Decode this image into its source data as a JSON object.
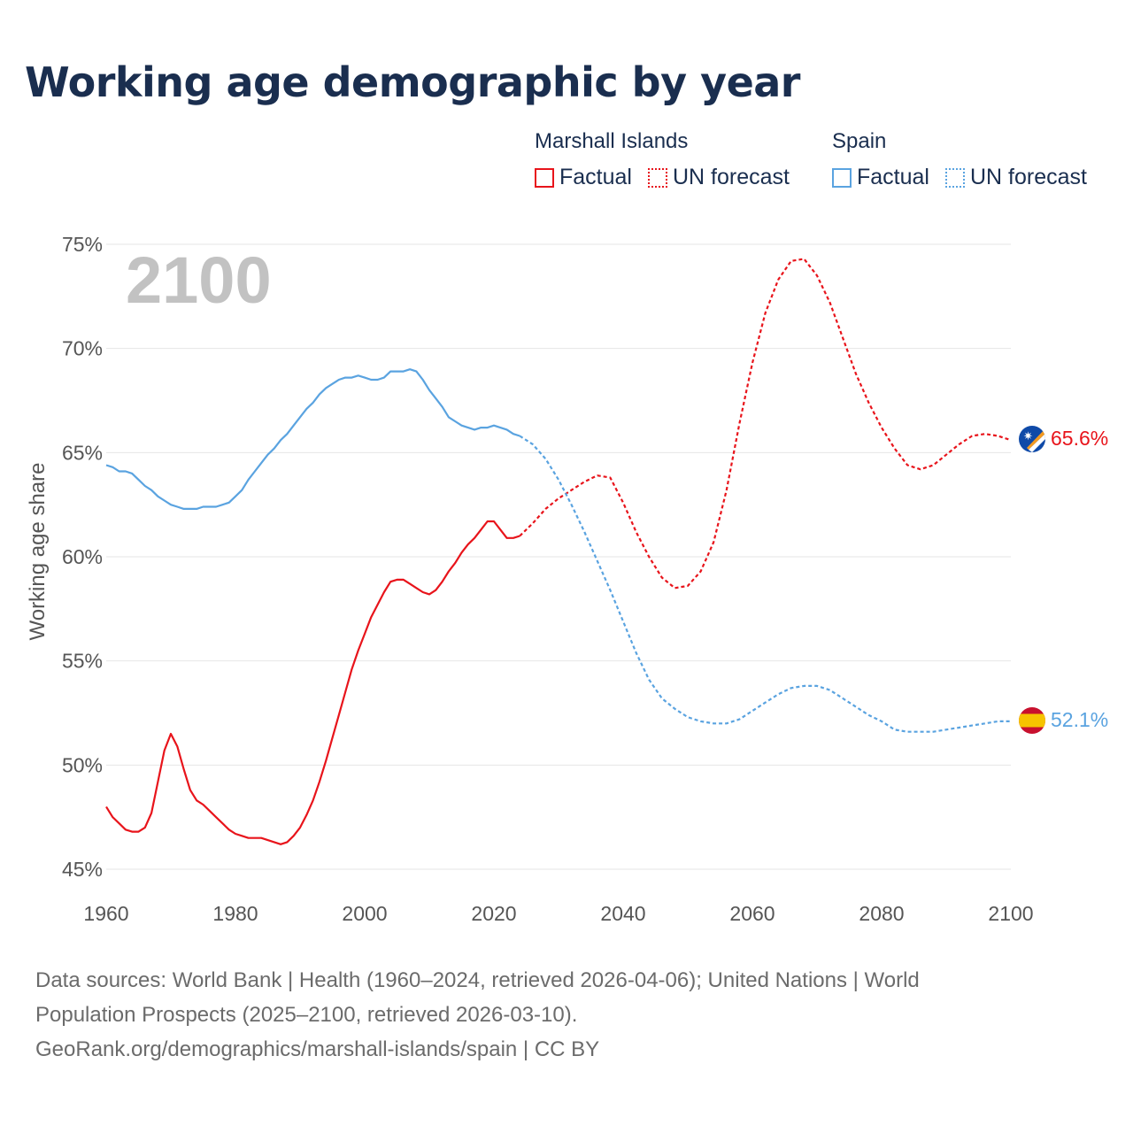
{
  "title": "Working age demographic by year",
  "legend": {
    "group1": "Marshall Islands",
    "group2": "Spain",
    "factual": "Factual",
    "forecast": "UN forecast"
  },
  "year_watermark": "2100",
  "end_labels": {
    "marshall": "65.6%",
    "spain": "52.1%"
  },
  "footer": {
    "line1": "Data sources: World Bank | Health (1960–2024, retrieved 2026-04-06); United Nations | World",
    "line2": "Population Prospects (2025–2100, retrieved 2026-03-10).",
    "line3": "GeoRank.org/demographics/marshall-islands/spain | CC BY"
  },
  "colors": {
    "marshall": "#e8141b",
    "spain": "#5aa3e0",
    "title": "#1a2e4f",
    "grid": "#e6e6e6",
    "axis_text": "#555555"
  },
  "chart_data": {
    "type": "line",
    "ylabel": "Working age share",
    "xlabel": "",
    "xlim": [
      1960,
      2100
    ],
    "ylim": [
      45,
      75
    ],
    "x_ticks": [
      1960,
      1980,
      2000,
      2020,
      2040,
      2060,
      2080,
      2100
    ],
    "y_ticks": [
      45,
      50,
      55,
      60,
      65,
      70,
      75
    ],
    "y_tick_labels": [
      "45%",
      "50%",
      "55%",
      "60%",
      "65%",
      "70%",
      "75%"
    ],
    "series": [
      {
        "name": "Marshall Islands",
        "factual": {
          "x": [
            1960,
            1961,
            1962,
            1963,
            1964,
            1965,
            1966,
            1967,
            1968,
            1969,
            1970,
            1971,
            1972,
            1973,
            1974,
            1975,
            1976,
            1977,
            1978,
            1979,
            1980,
            1981,
            1982,
            1983,
            1984,
            1985,
            1986,
            1987,
            1988,
            1989,
            1990,
            1991,
            1992,
            1993,
            1994,
            1995,
            1996,
            1997,
            1998,
            1999,
            2000,
            2001,
            2002,
            2003,
            2004,
            2005,
            2006,
            2007,
            2008,
            2009,
            2010,
            2011,
            2012,
            2013,
            2014,
            2015,
            2016,
            2017,
            2018,
            2019,
            2020,
            2021,
            2022,
            2023,
            2024
          ],
          "y": [
            48.0,
            47.5,
            47.2,
            46.9,
            46.8,
            46.8,
            47.0,
            47.7,
            49.2,
            50.7,
            51.5,
            50.9,
            49.8,
            48.8,
            48.3,
            48.1,
            47.8,
            47.5,
            47.2,
            46.9,
            46.7,
            46.6,
            46.5,
            46.5,
            46.5,
            46.4,
            46.3,
            46.2,
            46.3,
            46.6,
            47.0,
            47.6,
            48.3,
            49.2,
            50.2,
            51.3,
            52.4,
            53.5,
            54.6,
            55.5,
            56.3,
            57.1,
            57.7,
            58.3,
            58.8,
            58.9,
            58.9,
            58.7,
            58.5,
            58.3,
            58.2,
            58.4,
            58.8,
            59.3,
            59.7,
            60.2,
            60.6,
            60.9,
            61.3,
            61.7,
            61.7,
            61.3,
            60.9,
            60.9,
            61.0
          ],
          "style": "solid"
        },
        "forecast": {
          "x": [
            2024,
            2026,
            2028,
            2030,
            2032,
            2034,
            2036,
            2038,
            2040,
            2042,
            2044,
            2046,
            2048,
            2050,
            2052,
            2054,
            2056,
            2058,
            2060,
            2062,
            2064,
            2066,
            2068,
            2070,
            2072,
            2074,
            2076,
            2078,
            2080,
            2082,
            2084,
            2086,
            2088,
            2090,
            2092,
            2094,
            2096,
            2098,
            2100
          ],
          "y": [
            61.0,
            61.6,
            62.3,
            62.8,
            63.2,
            63.6,
            63.9,
            63.8,
            62.6,
            61.2,
            60.0,
            59.0,
            58.5,
            58.6,
            59.3,
            60.7,
            63.2,
            66.4,
            69.3,
            71.7,
            73.3,
            74.2,
            74.3,
            73.5,
            72.2,
            70.5,
            68.8,
            67.4,
            66.2,
            65.2,
            64.4,
            64.2,
            64.4,
            64.9,
            65.4,
            65.8,
            65.9,
            65.8,
            65.6
          ],
          "style": "dotted"
        }
      },
      {
        "name": "Spain",
        "factual": {
          "x": [
            1960,
            1961,
            1962,
            1963,
            1964,
            1965,
            1966,
            1967,
            1968,
            1969,
            1970,
            1971,
            1972,
            1973,
            1974,
            1975,
            1976,
            1977,
            1978,
            1979,
            1980,
            1981,
            1982,
            1983,
            1984,
            1985,
            1986,
            1987,
            1988,
            1989,
            1990,
            1991,
            1992,
            1993,
            1994,
            1995,
            1996,
            1997,
            1998,
            1999,
            2000,
            2001,
            2002,
            2003,
            2004,
            2005,
            2006,
            2007,
            2008,
            2009,
            2010,
            2011,
            2012,
            2013,
            2014,
            2015,
            2016,
            2017,
            2018,
            2019,
            2020,
            2021,
            2022,
            2023,
            2024
          ],
          "y": [
            64.4,
            64.3,
            64.1,
            64.1,
            64.0,
            63.7,
            63.4,
            63.2,
            62.9,
            62.7,
            62.5,
            62.4,
            62.3,
            62.3,
            62.3,
            62.4,
            62.4,
            62.4,
            62.5,
            62.6,
            62.9,
            63.2,
            63.7,
            64.1,
            64.5,
            64.9,
            65.2,
            65.6,
            65.9,
            66.3,
            66.7,
            67.1,
            67.4,
            67.8,
            68.1,
            68.3,
            68.5,
            68.6,
            68.6,
            68.7,
            68.6,
            68.5,
            68.5,
            68.6,
            68.9,
            68.9,
            68.9,
            69.0,
            68.9,
            68.5,
            68.0,
            67.6,
            67.2,
            66.7,
            66.5,
            66.3,
            66.2,
            66.1,
            66.2,
            66.2,
            66.3,
            66.2,
            66.1,
            65.9,
            65.8
          ],
          "style": "solid"
        },
        "forecast": {
          "x": [
            2024,
            2026,
            2028,
            2030,
            2032,
            2034,
            2036,
            2038,
            2040,
            2042,
            2044,
            2046,
            2048,
            2050,
            2052,
            2054,
            2056,
            2058,
            2060,
            2062,
            2064,
            2066,
            2068,
            2070,
            2072,
            2074,
            2076,
            2078,
            2080,
            2082,
            2084,
            2086,
            2088,
            2090,
            2092,
            2094,
            2096,
            2098,
            2100
          ],
          "y": [
            65.8,
            65.4,
            64.7,
            63.7,
            62.5,
            61.2,
            59.8,
            58.4,
            56.9,
            55.4,
            54.1,
            53.2,
            52.7,
            52.3,
            52.1,
            52.0,
            52.0,
            52.2,
            52.6,
            53.0,
            53.4,
            53.7,
            53.8,
            53.8,
            53.6,
            53.2,
            52.8,
            52.4,
            52.1,
            51.7,
            51.6,
            51.6,
            51.6,
            51.7,
            51.8,
            51.9,
            52.0,
            52.1,
            52.1
          ],
          "style": "dotted"
        }
      }
    ]
  }
}
